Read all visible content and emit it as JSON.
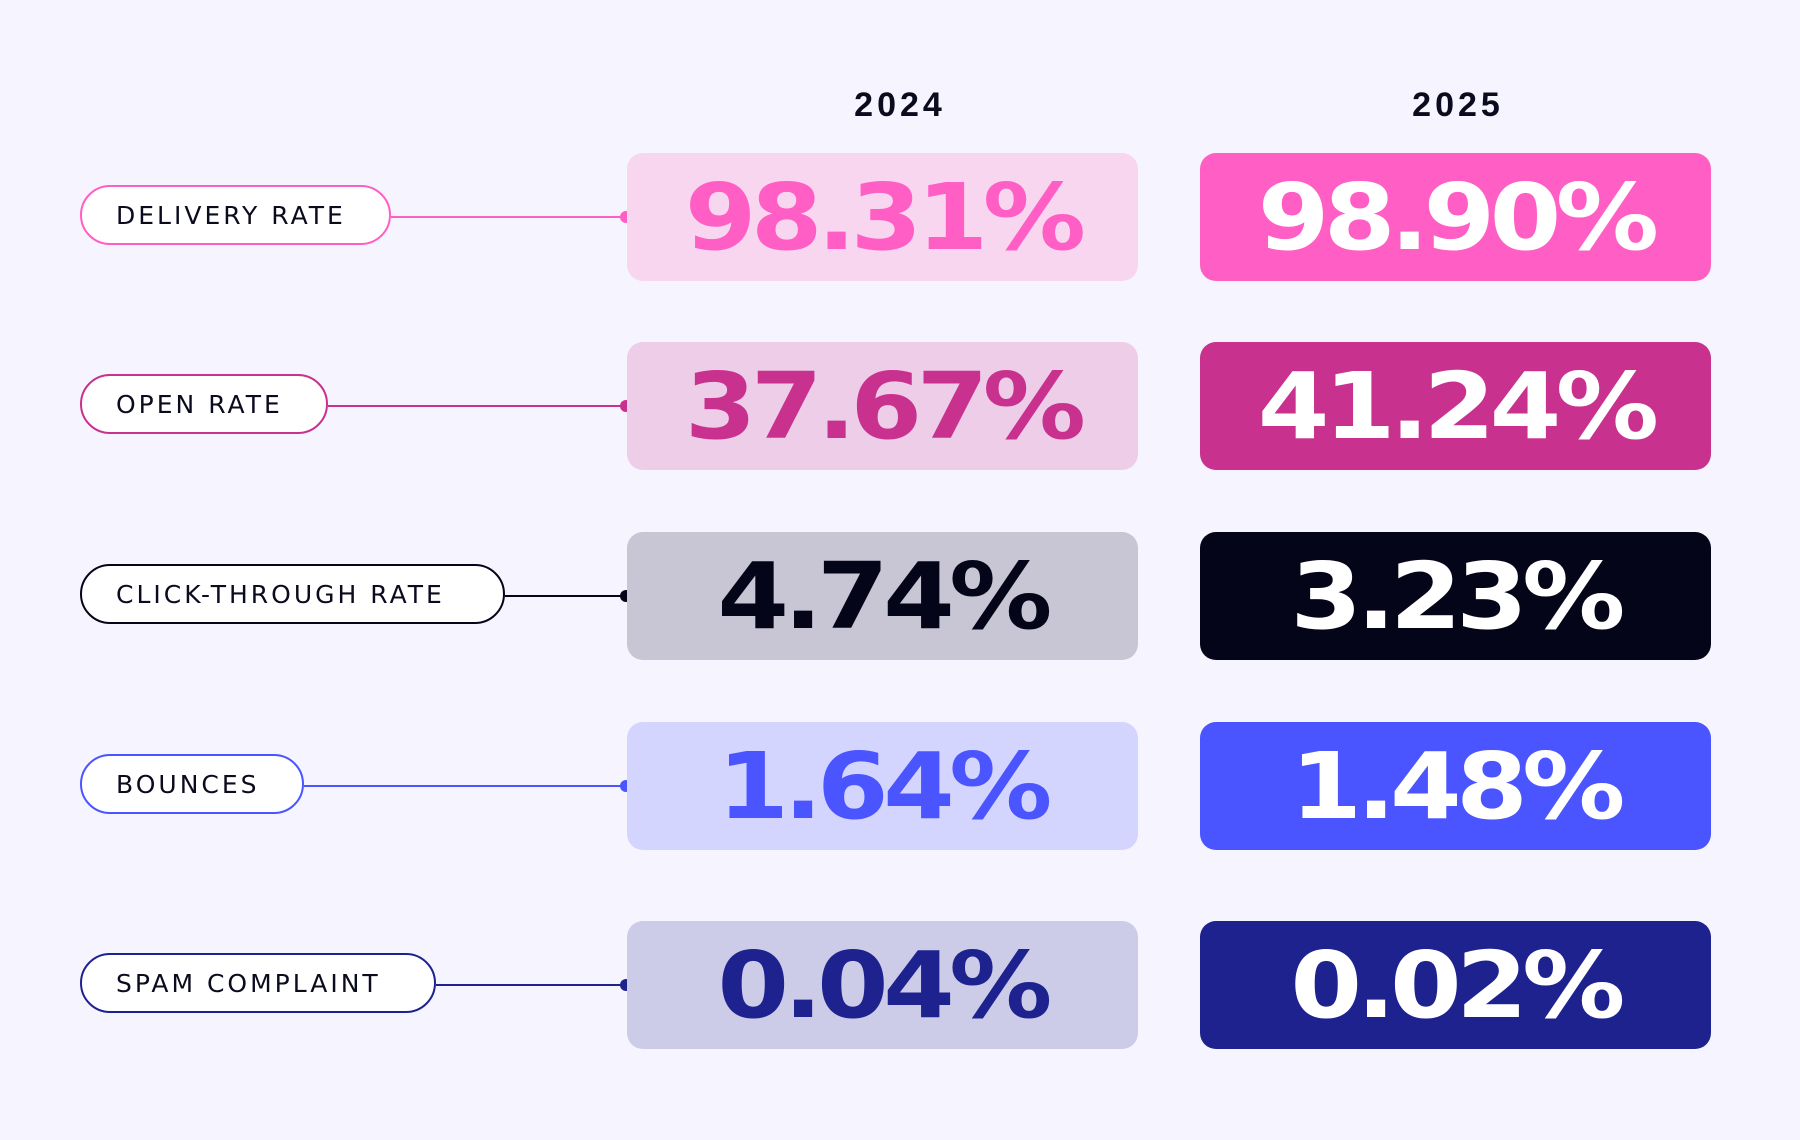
{
  "chart_data": {
    "type": "table",
    "columns": [
      "2024",
      "2025"
    ],
    "rows": [
      {
        "label": "DELIVERY RATE",
        "v2024": "98.31%",
        "v2025": "98.90%",
        "color": "#FF5EC4",
        "light": "#F9D6F0",
        "text2024": "#FF5EC4",
        "text2025": "#FFFFFF"
      },
      {
        "label": "OPEN RATE",
        "v2024": "37.67%",
        "v2025": "41.24%",
        "color": "#C9318F",
        "light": "#EECDE8",
        "text2024": "#C9318F",
        "text2025": "#FFFFFF"
      },
      {
        "label": "CLICK-THROUGH RATE",
        "v2024": "4.74%",
        "v2025": "3.23%",
        "color": "#05051A",
        "light": "#C8C6D4",
        "text2024": "#05051A",
        "text2025": "#FFFFFF"
      },
      {
        "label": "BOUNCES",
        "v2024": "1.64%",
        "v2025": "1.48%",
        "color": "#4A55FF",
        "light": "#D4D5FF",
        "text2024": "#4A55FF",
        "text2025": "#FFFFFF"
      },
      {
        "label": "SPAM COMPLAINT",
        "v2024": "0.04%",
        "v2025": "0.02%",
        "color": "#1E228F",
        "light": "#CCCBE8",
        "text2024": "#1E228F",
        "text2025": "#FFFFFF"
      }
    ]
  }
}
